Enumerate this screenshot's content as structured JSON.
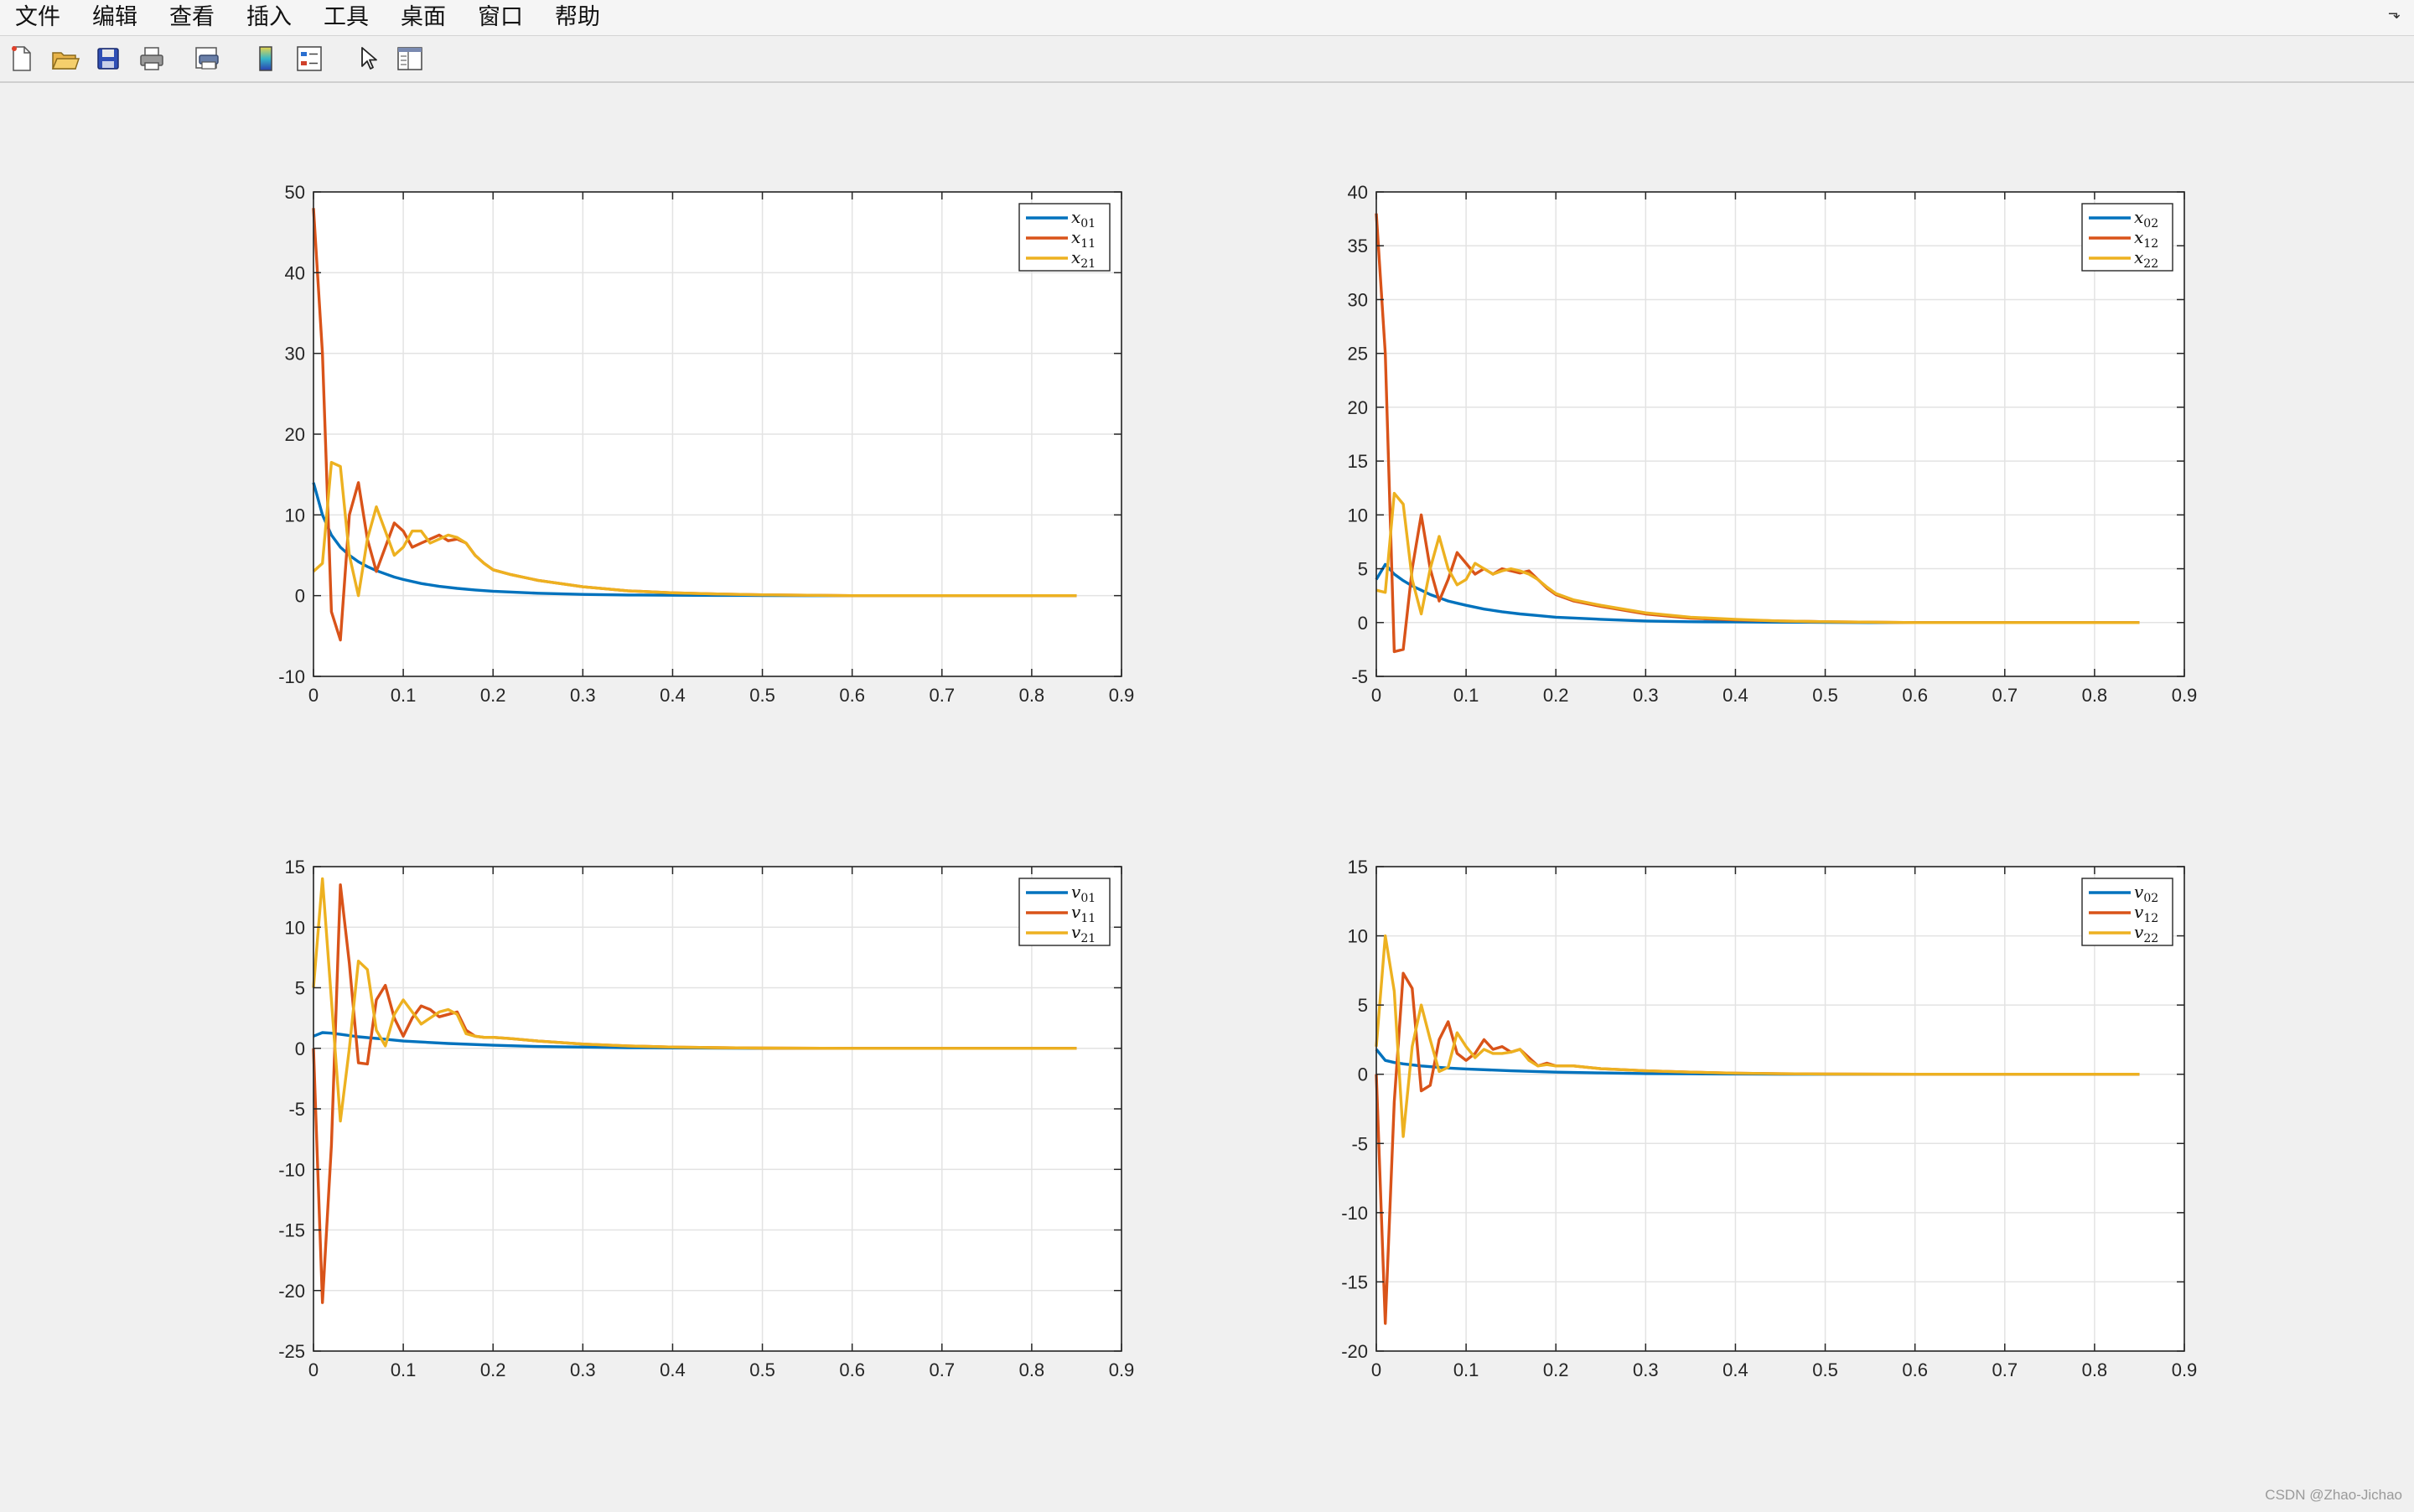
{
  "menu": [
    "文件",
    "编辑",
    "查看",
    "插入",
    "工具",
    "桌面",
    "窗口",
    "帮助"
  ],
  "toolbar": {
    "buttons": [
      "new-figure",
      "open-file",
      "save",
      "print",
      "print-preview",
      "insert-colorbar",
      "insert-legend",
      "edit-plot",
      "property-inspector"
    ]
  },
  "watermark": "CSDN @Zhao-Jichao",
  "colors": {
    "series1": "#0072BD",
    "series2": "#D95319",
    "series3": "#EDB120"
  },
  "chart_data": [
    {
      "type": "line",
      "xlim": [
        0,
        0.9
      ],
      "ylim": [
        -10,
        50
      ],
      "xticks": [
        0,
        0.1,
        0.2,
        0.3,
        0.4,
        0.5,
        0.6,
        0.7,
        0.8,
        0.9
      ],
      "yticks": [
        -10,
        0,
        10,
        20,
        30,
        40,
        50
      ],
      "grid": true,
      "legend_position": "top-right",
      "series": [
        {
          "name": "x01",
          "label_base": "x",
          "label_sub": "01",
          "x": [
            0,
            0.01,
            0.02,
            0.03,
            0.04,
            0.05,
            0.06,
            0.07,
            0.08,
            0.09,
            0.1,
            0.12,
            0.14,
            0.16,
            0.18,
            0.2,
            0.25,
            0.3,
            0.35,
            0.4,
            0.45,
            0.5,
            0.55,
            0.6,
            0.65,
            0.7,
            0.75,
            0.8,
            0.85
          ],
          "y": [
            14,
            10,
            7.5,
            6,
            5,
            4.2,
            3.6,
            3.1,
            2.7,
            2.3,
            2,
            1.5,
            1.15,
            0.9,
            0.7,
            0.55,
            0.3,
            0.15,
            0.08,
            0.05,
            0.03,
            0.02,
            0,
            0,
            0,
            0,
            0,
            0,
            0
          ]
        },
        {
          "name": "x11",
          "label_base": "x",
          "label_sub": "11",
          "x": [
            0,
            0.01,
            0.02,
            0.03,
            0.04,
            0.05,
            0.06,
            0.07,
            0.08,
            0.09,
            0.1,
            0.11,
            0.12,
            0.13,
            0.14,
            0.15,
            0.16,
            0.17,
            0.18,
            0.19,
            0.2,
            0.22,
            0.25,
            0.3,
            0.35,
            0.4,
            0.45,
            0.5,
            0.55,
            0.6,
            0.7,
            0.8,
            0.85
          ],
          "y": [
            48,
            30,
            -2,
            -5.5,
            10,
            14,
            7,
            3,
            6,
            9,
            8,
            6,
            6.5,
            7,
            7.5,
            6.8,
            7,
            6.5,
            5,
            4,
            3.2,
            2.6,
            1.9,
            1.1,
            0.6,
            0.35,
            0.2,
            0.1,
            0.05,
            0,
            0,
            0,
            0
          ]
        },
        {
          "name": "x21",
          "label_base": "x",
          "label_sub": "21",
          "x": [
            0,
            0.01,
            0.02,
            0.03,
            0.04,
            0.05,
            0.06,
            0.07,
            0.08,
            0.09,
            0.1,
            0.11,
            0.12,
            0.13,
            0.14,
            0.15,
            0.16,
            0.17,
            0.18,
            0.19,
            0.2,
            0.22,
            0.25,
            0.3,
            0.35,
            0.4,
            0.45,
            0.5,
            0.55,
            0.6,
            0.7,
            0.8,
            0.85
          ],
          "y": [
            3,
            4,
            16.5,
            16,
            5,
            0,
            7,
            11,
            8,
            5,
            6,
            8,
            8,
            6.5,
            7,
            7.5,
            7.2,
            6.5,
            5,
            4,
            3.2,
            2.6,
            1.9,
            1.1,
            0.6,
            0.35,
            0.2,
            0.1,
            0.05,
            0,
            0,
            0,
            0
          ]
        }
      ]
    },
    {
      "type": "line",
      "xlim": [
        0,
        0.9
      ],
      "ylim": [
        -5,
        40
      ],
      "xticks": [
        0,
        0.1,
        0.2,
        0.3,
        0.4,
        0.5,
        0.6,
        0.7,
        0.8,
        0.9
      ],
      "yticks": [
        -5,
        0,
        5,
        10,
        15,
        20,
        25,
        30,
        35,
        40
      ],
      "grid": true,
      "legend_position": "top-right",
      "series": [
        {
          "name": "x02",
          "label_base": "x",
          "label_sub": "02",
          "x": [
            0,
            0.01,
            0.02,
            0.03,
            0.04,
            0.05,
            0.06,
            0.07,
            0.08,
            0.09,
            0.1,
            0.12,
            0.14,
            0.16,
            0.18,
            0.2,
            0.25,
            0.3,
            0.35,
            0.4,
            0.45,
            0.5,
            0.55,
            0.6,
            0.7,
            0.8,
            0.85
          ],
          "y": [
            4,
            5.4,
            4.5,
            3.9,
            3.4,
            3,
            2.6,
            2.3,
            2,
            1.8,
            1.6,
            1.25,
            1,
            0.8,
            0.65,
            0.5,
            0.3,
            0.15,
            0.08,
            0.05,
            0.03,
            0.02,
            0,
            0,
            0,
            0,
            0
          ]
        },
        {
          "name": "x12",
          "label_base": "x",
          "label_sub": "12",
          "x": [
            0,
            0.01,
            0.02,
            0.03,
            0.04,
            0.05,
            0.06,
            0.07,
            0.08,
            0.09,
            0.1,
            0.11,
            0.12,
            0.13,
            0.14,
            0.15,
            0.16,
            0.17,
            0.18,
            0.19,
            0.2,
            0.22,
            0.25,
            0.3,
            0.35,
            0.4,
            0.45,
            0.5,
            0.55,
            0.6,
            0.7,
            0.8,
            0.85
          ],
          "y": [
            38,
            25,
            -2.7,
            -2.5,
            5,
            10,
            5,
            2,
            4,
            6.5,
            5.5,
            4.5,
            5,
            4.5,
            5,
            4.8,
            4.6,
            4.8,
            4,
            3.2,
            2.6,
            2,
            1.5,
            0.8,
            0.4,
            0.25,
            0.15,
            0.08,
            0.04,
            0,
            0,
            0,
            0
          ]
        },
        {
          "name": "x22",
          "label_base": "x",
          "label_sub": "22",
          "x": [
            0,
            0.01,
            0.02,
            0.03,
            0.04,
            0.05,
            0.06,
            0.07,
            0.08,
            0.09,
            0.1,
            0.11,
            0.12,
            0.13,
            0.14,
            0.15,
            0.16,
            0.17,
            0.18,
            0.19,
            0.2,
            0.22,
            0.25,
            0.3,
            0.35,
            0.4,
            0.45,
            0.5,
            0.55,
            0.6,
            0.7,
            0.8,
            0.85
          ],
          "y": [
            3,
            2.8,
            12,
            11,
            4,
            0.8,
            5,
            8,
            5,
            3.5,
            4,
            5.5,
            5,
            4.5,
            4.8,
            5,
            4.8,
            4.5,
            4,
            3.3,
            2.7,
            2.1,
            1.6,
            0.9,
            0.5,
            0.3,
            0.15,
            0.08,
            0.04,
            0,
            0,
            0,
            0
          ]
        }
      ]
    },
    {
      "type": "line",
      "xlim": [
        0,
        0.9
      ],
      "ylim": [
        -25,
        15
      ],
      "xticks": [
        0,
        0.1,
        0.2,
        0.3,
        0.4,
        0.5,
        0.6,
        0.7,
        0.8,
        0.9
      ],
      "yticks": [
        -25,
        -20,
        -15,
        -10,
        -5,
        0,
        5,
        10,
        15
      ],
      "grid": true,
      "legend_position": "top-right",
      "series": [
        {
          "name": "v01",
          "label_base": "v",
          "label_sub": "01",
          "x": [
            0,
            0.01,
            0.02,
            0.03,
            0.05,
            0.08,
            0.1,
            0.15,
            0.2,
            0.25,
            0.3,
            0.35,
            0.4,
            0.45,
            0.5,
            0.6,
            0.7,
            0.8,
            0.85
          ],
          "y": [
            1,
            1.3,
            1.25,
            1.15,
            0.95,
            0.75,
            0.6,
            0.4,
            0.25,
            0.15,
            0.1,
            0.05,
            0.03,
            0.02,
            0,
            0,
            0,
            0,
            0
          ]
        },
        {
          "name": "v11",
          "label_base": "v",
          "label_sub": "11",
          "x": [
            0,
            0.01,
            0.02,
            0.03,
            0.04,
            0.05,
            0.06,
            0.07,
            0.08,
            0.09,
            0.1,
            0.11,
            0.12,
            0.13,
            0.14,
            0.15,
            0.16,
            0.17,
            0.18,
            0.19,
            0.2,
            0.22,
            0.25,
            0.3,
            0.35,
            0.4,
            0.45,
            0.5,
            0.6,
            0.7,
            0.8,
            0.85
          ],
          "y": [
            0,
            -21,
            -8,
            13.5,
            7,
            -1.2,
            -1.3,
            4,
            5.2,
            2.5,
            1,
            2.5,
            3.5,
            3.2,
            2.6,
            2.8,
            3,
            1.5,
            1,
            0.9,
            0.9,
            0.8,
            0.6,
            0.35,
            0.2,
            0.1,
            0.05,
            0.02,
            0,
            0,
            0,
            0
          ]
        },
        {
          "name": "v21",
          "label_base": "v",
          "label_sub": "21",
          "x": [
            0,
            0.01,
            0.02,
            0.03,
            0.04,
            0.05,
            0.06,
            0.07,
            0.08,
            0.09,
            0.1,
            0.11,
            0.12,
            0.13,
            0.14,
            0.15,
            0.16,
            0.17,
            0.18,
            0.19,
            0.2,
            0.22,
            0.25,
            0.3,
            0.35,
            0.4,
            0.45,
            0.5,
            0.6,
            0.7,
            0.8,
            0.85
          ],
          "y": [
            5,
            14,
            4,
            -6,
            0,
            7.2,
            6.5,
            1.5,
            0.2,
            2.8,
            4,
            3,
            2,
            2.5,
            3,
            3.2,
            2.8,
            1.2,
            1,
            0.9,
            0.9,
            0.8,
            0.6,
            0.35,
            0.2,
            0.1,
            0.05,
            0.02,
            0,
            0,
            0,
            0
          ]
        }
      ]
    },
    {
      "type": "line",
      "xlim": [
        0,
        0.9
      ],
      "ylim": [
        -20,
        15
      ],
      "xticks": [
        0,
        0.1,
        0.2,
        0.3,
        0.4,
        0.5,
        0.6,
        0.7,
        0.8,
        0.9
      ],
      "yticks": [
        -20,
        -15,
        -10,
        -5,
        0,
        5,
        10,
        15
      ],
      "grid": true,
      "legend_position": "top-right",
      "series": [
        {
          "name": "v02",
          "label_base": "v",
          "label_sub": "02",
          "x": [
            0,
            0.01,
            0.02,
            0.03,
            0.05,
            0.08,
            0.1,
            0.15,
            0.2,
            0.25,
            0.3,
            0.35,
            0.4,
            0.45,
            0.5,
            0.6,
            0.7,
            0.8,
            0.85
          ],
          "y": [
            1.8,
            1,
            0.85,
            0.75,
            0.6,
            0.45,
            0.38,
            0.25,
            0.15,
            0.1,
            0.05,
            0.03,
            0.02,
            0,
            0,
            0,
            0,
            0,
            0
          ]
        },
        {
          "name": "v12",
          "label_base": "v",
          "label_sub": "12",
          "x": [
            0,
            0.01,
            0.02,
            0.03,
            0.04,
            0.05,
            0.06,
            0.07,
            0.08,
            0.09,
            0.1,
            0.11,
            0.12,
            0.13,
            0.14,
            0.15,
            0.16,
            0.17,
            0.18,
            0.19,
            0.2,
            0.22,
            0.25,
            0.3,
            0.35,
            0.4,
            0.45,
            0.5,
            0.6,
            0.7,
            0.8,
            0.85
          ],
          "y": [
            0,
            -18,
            -2,
            7.3,
            6.2,
            -1.2,
            -0.8,
            2.5,
            3.8,
            1.5,
            1,
            1.5,
            2.5,
            1.8,
            2,
            1.6,
            1.8,
            1.2,
            0.6,
            0.8,
            0.6,
            0.6,
            0.4,
            0.25,
            0.15,
            0.08,
            0.04,
            0.02,
            0,
            0,
            0,
            0
          ]
        },
        {
          "name": "v22",
          "label_base": "v",
          "label_sub": "22",
          "x": [
            0,
            0.01,
            0.02,
            0.03,
            0.04,
            0.05,
            0.06,
            0.07,
            0.08,
            0.09,
            0.1,
            0.11,
            0.12,
            0.13,
            0.14,
            0.15,
            0.16,
            0.17,
            0.18,
            0.19,
            0.2,
            0.22,
            0.25,
            0.3,
            0.35,
            0.4,
            0.45,
            0.5,
            0.6,
            0.7,
            0.8,
            0.85
          ],
          "y": [
            2,
            10,
            6,
            -4.5,
            2,
            5,
            2.5,
            0.2,
            0.5,
            3,
            2,
            1.2,
            1.8,
            1.5,
            1.5,
            1.6,
            1.8,
            1,
            0.6,
            0.7,
            0.6,
            0.6,
            0.4,
            0.25,
            0.15,
            0.08,
            0.04,
            0.02,
            0,
            0,
            0,
            0
          ]
        }
      ]
    }
  ]
}
